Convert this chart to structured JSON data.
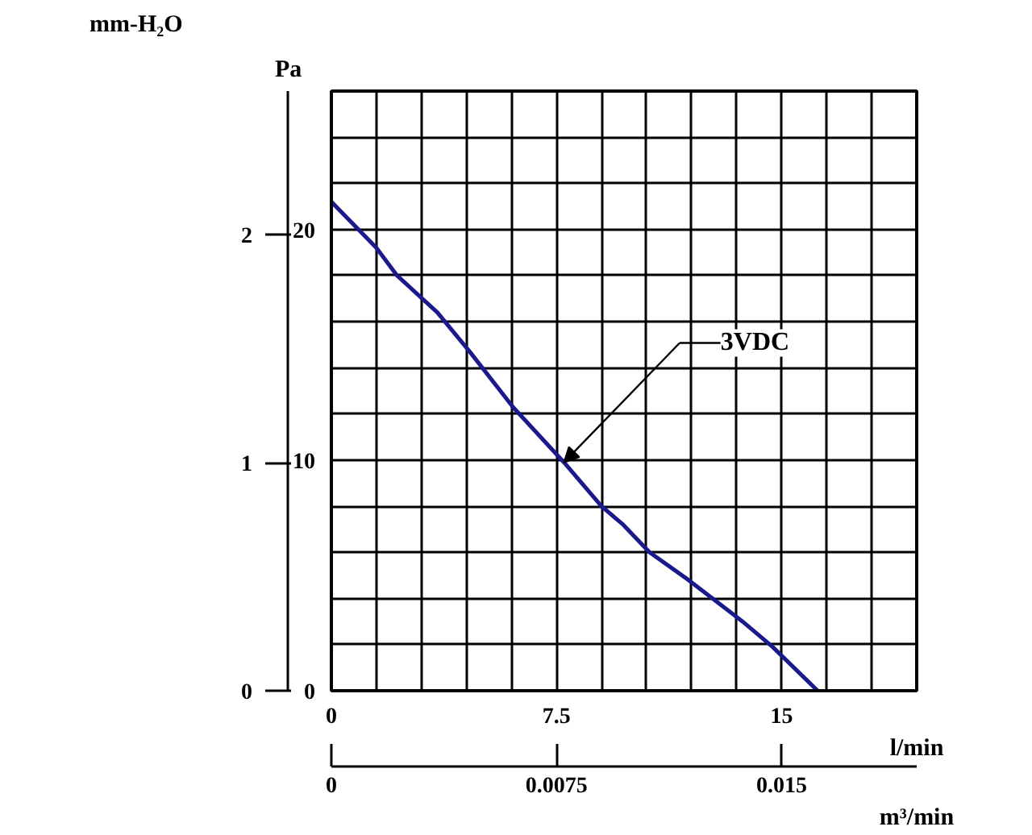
{
  "chart_data": {
    "type": "line",
    "xlabel": "l/min",
    "ylabel": "Pa",
    "y2label": "mm-H₂O",
    "x2label": "m³/min",
    "series": [
      {
        "color": "#1a1a8c",
        "x": [
          0,
          1.5,
          2.19,
          3.53,
          4.61,
          6.05,
          7.75,
          9.0,
          9.72,
          10.6,
          11.9,
          12.6,
          13.7,
          14.7,
          16.2
        ],
        "values": [
          21.2,
          19.2,
          18.0,
          16.4,
          14.7,
          12.3,
          9.9,
          8.0,
          7.2,
          6.0,
          4.8,
          4.1,
          3.0,
          1.9,
          0
        ]
      }
    ],
    "xlim": [
      0,
      19.5
    ],
    "xticks": [
      0,
      {
        "value": 1.5,
        "label": null
      },
      {
        "value": 3,
        "label": null
      },
      {
        "value": 4.5,
        "label": null
      },
      {
        "value": 6,
        "label": null
      },
      7.5,
      {
        "value": 9,
        "label": null
      },
      {
        "value": 10.5,
        "label": null
      },
      {
        "value": 12,
        "label": null
      },
      {
        "value": 13.5,
        "label": null
      },
      15,
      {
        "value": 16.5,
        "label": null
      },
      {
        "value": 18,
        "label": null
      },
      {
        "value": 19.5,
        "label": null
      }
    ],
    "ylim": [
      0,
      26
    ],
    "yticks": [
      0,
      {
        "value": 2,
        "label": null
      },
      {
        "value": 4,
        "label": null
      },
      {
        "value": 6,
        "label": null
      },
      {
        "value": 8,
        "label": null
      },
      10,
      {
        "value": 12,
        "label": null
      },
      {
        "value": 14,
        "label": null
      },
      {
        "value": 16,
        "label": null
      },
      {
        "value": 18,
        "label": null
      },
      20,
      {
        "value": 22,
        "label": null
      },
      {
        "value": 24,
        "label": null
      },
      {
        "value": 26,
        "label": null
      }
    ],
    "y2lim": [
      0,
      2.63
    ],
    "y2ticks": [
      0,
      1,
      2
    ],
    "x2lim": [
      0,
      0.0195
    ],
    "x2ticks": [
      0,
      0.0075,
      0.015
    ],
    "annotations": [
      "3VDC"
    ],
    "grid": true,
    "marker": "none",
    "line_style": "solid"
  }
}
